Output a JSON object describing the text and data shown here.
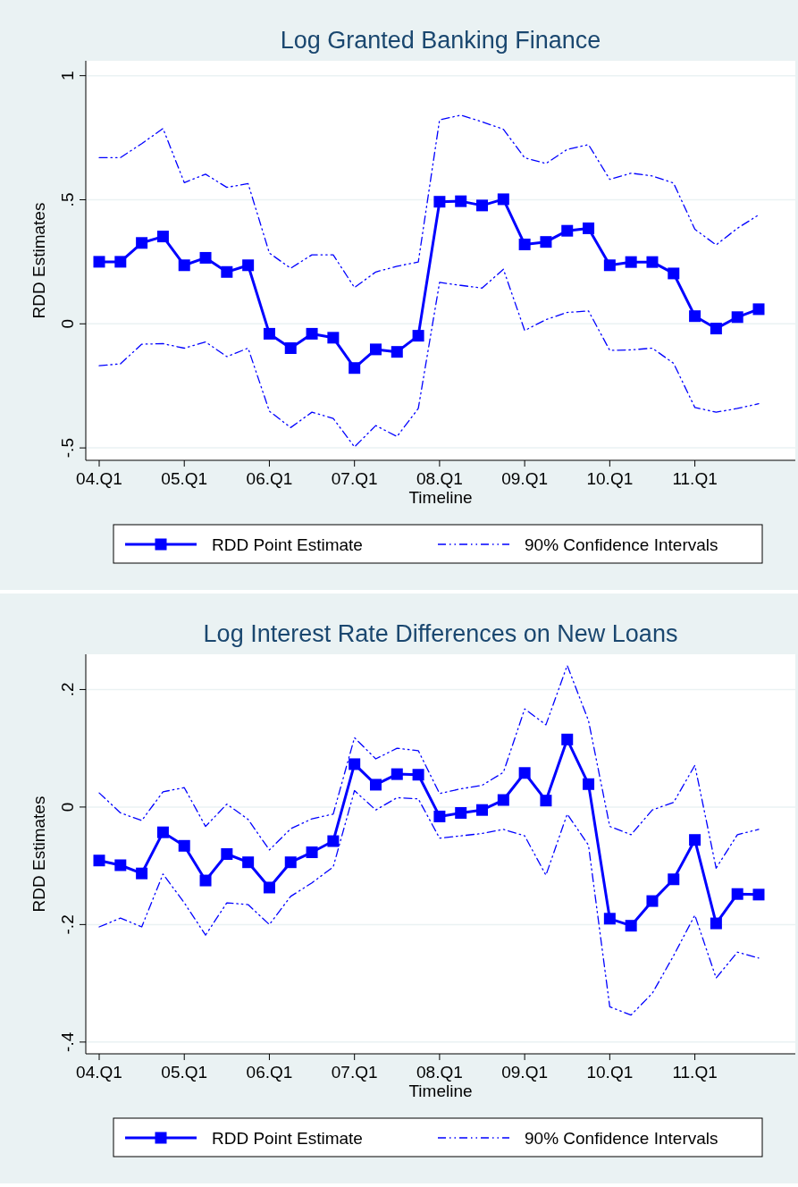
{
  "chart_data": [
    {
      "type": "line",
      "title": "Log Granted Banking Finance",
      "xlabel": "Timeline",
      "ylabel": "RDD Estimates",
      "categories": [
        "04.Q1",
        null,
        null,
        null,
        "05.Q1",
        null,
        null,
        null,
        "06.Q1",
        null,
        null,
        null,
        "07.Q1",
        null,
        null,
        null,
        "08.Q1",
        null,
        null,
        null,
        "09.Q1",
        null,
        null,
        null,
        "10.Q1",
        null,
        null,
        null,
        "11.Q1",
        null,
        null,
        null
      ],
      "ylim": [
        -0.55,
        1.06
      ],
      "yticks": [
        {
          "value": -0.5,
          "label": "-.5"
        },
        {
          "value": 0,
          "label": "0"
        },
        {
          "value": 0.5,
          "label": ".5"
        },
        {
          "value": 1,
          "label": "1"
        }
      ],
      "grid": "y",
      "legend": "bottom",
      "series": [
        {
          "name": "RDD Point Estimate",
          "color": "#0000ff",
          "marker": "square",
          "line_style": "solid",
          "values": [
            0.25,
            0.25,
            0.326,
            0.352,
            0.236,
            0.266,
            0.209,
            0.236,
            -0.04,
            -0.098,
            -0.04,
            -0.056,
            -0.178,
            -0.103,
            -0.113,
            -0.048,
            0.492,
            0.494,
            0.477,
            0.502,
            0.32,
            0.33,
            0.375,
            0.385,
            0.236,
            0.249,
            0.249,
            0.203,
            0.031,
            -0.019,
            0.027,
            0.059
          ]
        },
        {
          "name": "90% Confidence Intervals",
          "color": "#0000ff",
          "marker": "none",
          "line_style": "dashed",
          "values": [
            0.67,
            0.67,
            0.726,
            0.787,
            0.569,
            0.603,
            0.55,
            0.565,
            0.285,
            0.224,
            0.278,
            0.278,
            0.146,
            0.209,
            0.232,
            0.249,
            0.822,
            0.841,
            0.814,
            0.784,
            0.669,
            0.646,
            0.703,
            0.722,
            0.582,
            0.607,
            0.596,
            0.567,
            0.381,
            0.318,
            0.385,
            0.439
          ]
        },
        {
          "color": "#0000ff",
          "marker": "none",
          "line_style": "dashed",
          "values": [
            -0.169,
            -0.161,
            -0.082,
            -0.08,
            -0.098,
            -0.073,
            -0.132,
            -0.098,
            -0.352,
            -0.418,
            -0.356,
            -0.381,
            -0.496,
            -0.41,
            -0.454,
            -0.341,
            0.167,
            0.155,
            0.144,
            0.22,
            -0.027,
            0.017,
            0.046,
            0.052,
            -0.107,
            -0.105,
            -0.098,
            -0.159,
            -0.337,
            -0.356,
            -0.341,
            -0.322
          ]
        }
      ]
    },
    {
      "type": "line",
      "title": "Log Interest Rate Differences on New Loans",
      "xlabel": "Timeline",
      "ylabel": "RDD Estimates",
      "categories": [
        "04.Q1",
        null,
        null,
        null,
        "05.Q1",
        null,
        null,
        null,
        "06.Q1",
        null,
        null,
        null,
        "07.Q1",
        null,
        null,
        null,
        "08.Q1",
        null,
        null,
        null,
        "09.Q1",
        null,
        null,
        null,
        "10.Q1",
        null,
        null,
        null,
        "11.Q1",
        null,
        null,
        null
      ],
      "ylim": [
        -0.42,
        0.26
      ],
      "yticks": [
        {
          "value": -0.4,
          "label": "-.4"
        },
        {
          "value": -0.2,
          "label": "-.2"
        },
        {
          "value": 0,
          "label": "0"
        },
        {
          "value": 0.2,
          "label": ".2"
        }
      ],
      "grid": "y",
      "legend": "bottom",
      "series": [
        {
          "name": "RDD Point Estimate",
          "color": "#0000ff",
          "marker": "square",
          "line_style": "solid",
          "values": [
            -0.091,
            -0.099,
            -0.113,
            -0.043,
            -0.066,
            -0.125,
            -0.08,
            -0.094,
            -0.137,
            -0.094,
            -0.077,
            -0.058,
            0.073,
            0.038,
            0.056,
            0.055,
            -0.016,
            -0.01,
            -0.005,
            0.012,
            0.058,
            0.011,
            0.115,
            0.039,
            -0.19,
            -0.202,
            -0.16,
            -0.123,
            -0.056,
            -0.198,
            -0.148,
            -0.149
          ]
        },
        {
          "name": "90% Confidence Intervals",
          "color": "#0000ff",
          "marker": "none",
          "line_style": "dashed",
          "values": [
            0.024,
            -0.01,
            -0.023,
            0.026,
            0.033,
            -0.033,
            0.005,
            -0.021,
            -0.073,
            -0.037,
            -0.02,
            -0.012,
            0.118,
            0.082,
            0.1,
            0.096,
            0.023,
            0.031,
            0.037,
            0.059,
            0.167,
            0.14,
            0.241,
            0.147,
            -0.033,
            -0.047,
            -0.005,
            0.008,
            0.071,
            -0.104,
            -0.047,
            -0.038
          ]
        },
        {
          "color": "#0000ff",
          "marker": "none",
          "line_style": "dashed",
          "values": [
            -0.204,
            -0.189,
            -0.204,
            -0.114,
            -0.163,
            -0.218,
            -0.163,
            -0.166,
            -0.2,
            -0.152,
            -0.129,
            -0.102,
            0.028,
            -0.005,
            0.016,
            0.014,
            -0.053,
            -0.049,
            -0.045,
            -0.038,
            -0.049,
            -0.116,
            -0.012,
            -0.065,
            -0.34,
            -0.354,
            -0.317,
            -0.253,
            -0.184,
            -0.291,
            -0.247,
            -0.257
          ]
        }
      ]
    }
  ]
}
